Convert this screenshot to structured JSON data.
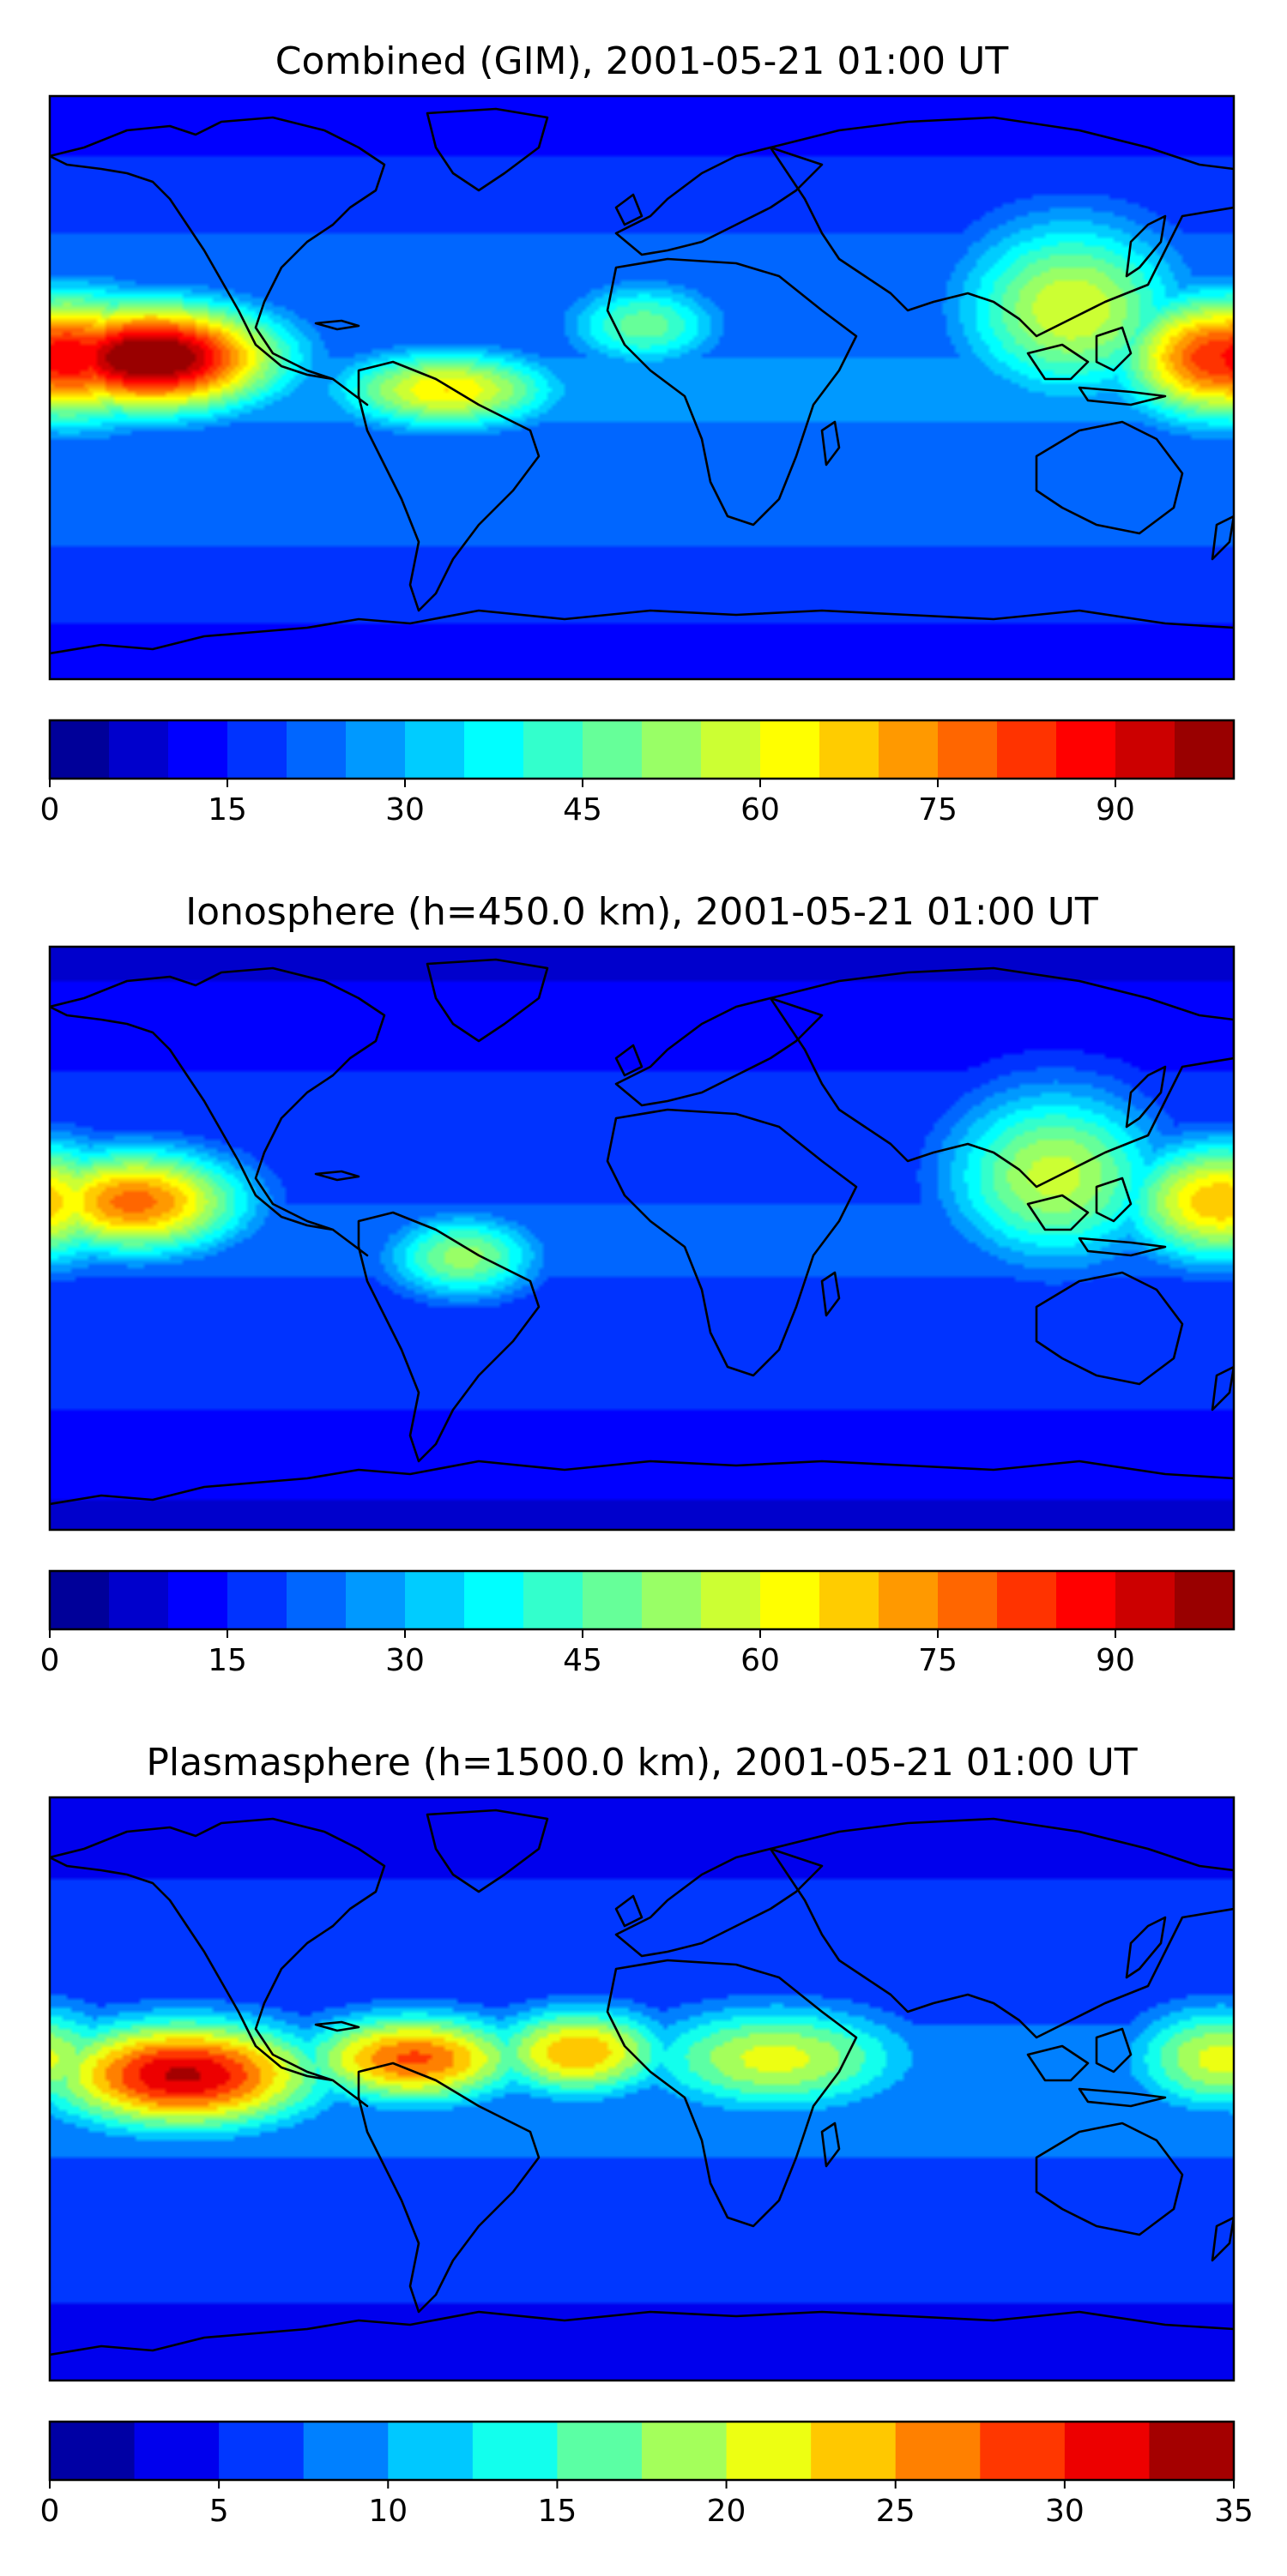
{
  "chart_data": [
    {
      "type": "heatmap",
      "title": "Combined (GIM), 2001-05-21 01:00 UT",
      "colorbar": {
        "ticks": [
          "0",
          "15",
          "30",
          "45",
          "60",
          "75",
          "90"
        ],
        "min": 0,
        "max": 100,
        "levels": 20
      },
      "blobs": [
        {
          "lon": -150,
          "lat": 10,
          "value": 95,
          "spread_lon": 28,
          "spread_lat": 12
        },
        {
          "lon": -175,
          "lat": 10,
          "value": 80,
          "spread_lon": 25,
          "spread_lat": 14
        },
        {
          "lon": -60,
          "lat": 0,
          "value": 55,
          "spread_lon": 25,
          "spread_lat": 9
        },
        {
          "lon": 175,
          "lat": 10,
          "value": 75,
          "spread_lon": 22,
          "spread_lat": 14
        },
        {
          "lon": 130,
          "lat": 25,
          "value": 50,
          "spread_lon": 25,
          "spread_lat": 20
        },
        {
          "lon": 0,
          "lat": 20,
          "value": 38,
          "spread_lon": 18,
          "spread_lat": 10
        }
      ],
      "background": 20
    },
    {
      "type": "heatmap",
      "title": "Ionosphere  (h=450.0 km), 2001-05-21 01:00 UT",
      "colorbar": {
        "ticks": [
          "0",
          "15",
          "30",
          "45",
          "60",
          "75",
          "90"
        ],
        "min": 0,
        "max": 100,
        "levels": 20
      },
      "blobs": [
        {
          "lon": -155,
          "lat": 12,
          "value": 70,
          "spread_lon": 25,
          "spread_lat": 12
        },
        {
          "lon": -55,
          "lat": -5,
          "value": 45,
          "spread_lon": 18,
          "spread_lat": 10
        },
        {
          "lon": 175,
          "lat": 12,
          "value": 62,
          "spread_lon": 22,
          "spread_lat": 14
        },
        {
          "lon": 125,
          "lat": 20,
          "value": 50,
          "spread_lon": 25,
          "spread_lat": 20
        }
      ],
      "background": 15
    },
    {
      "type": "heatmap",
      "title": "Plasmasphere (h=1500.0 km), 2001-05-21 01:00 UT",
      "colorbar": {
        "ticks": [
          "0",
          "5",
          "10",
          "15",
          "20",
          "25",
          "30",
          "35"
        ],
        "min": 0,
        "max": 35,
        "levels": 14
      },
      "blobs": [
        {
          "lon": -140,
          "lat": 5,
          "value": 30,
          "spread_lon": 30,
          "spread_lat": 12
        },
        {
          "lon": -70,
          "lat": 10,
          "value": 25,
          "spread_lon": 25,
          "spread_lat": 10
        },
        {
          "lon": -20,
          "lat": 12,
          "value": 22,
          "spread_lon": 20,
          "spread_lat": 10
        },
        {
          "lon": 40,
          "lat": 10,
          "value": 18,
          "spread_lon": 30,
          "spread_lat": 12
        },
        {
          "lon": 175,
          "lat": 10,
          "value": 18,
          "spread_lon": 20,
          "spread_lat": 12
        }
      ],
      "background": 6
    }
  ]
}
